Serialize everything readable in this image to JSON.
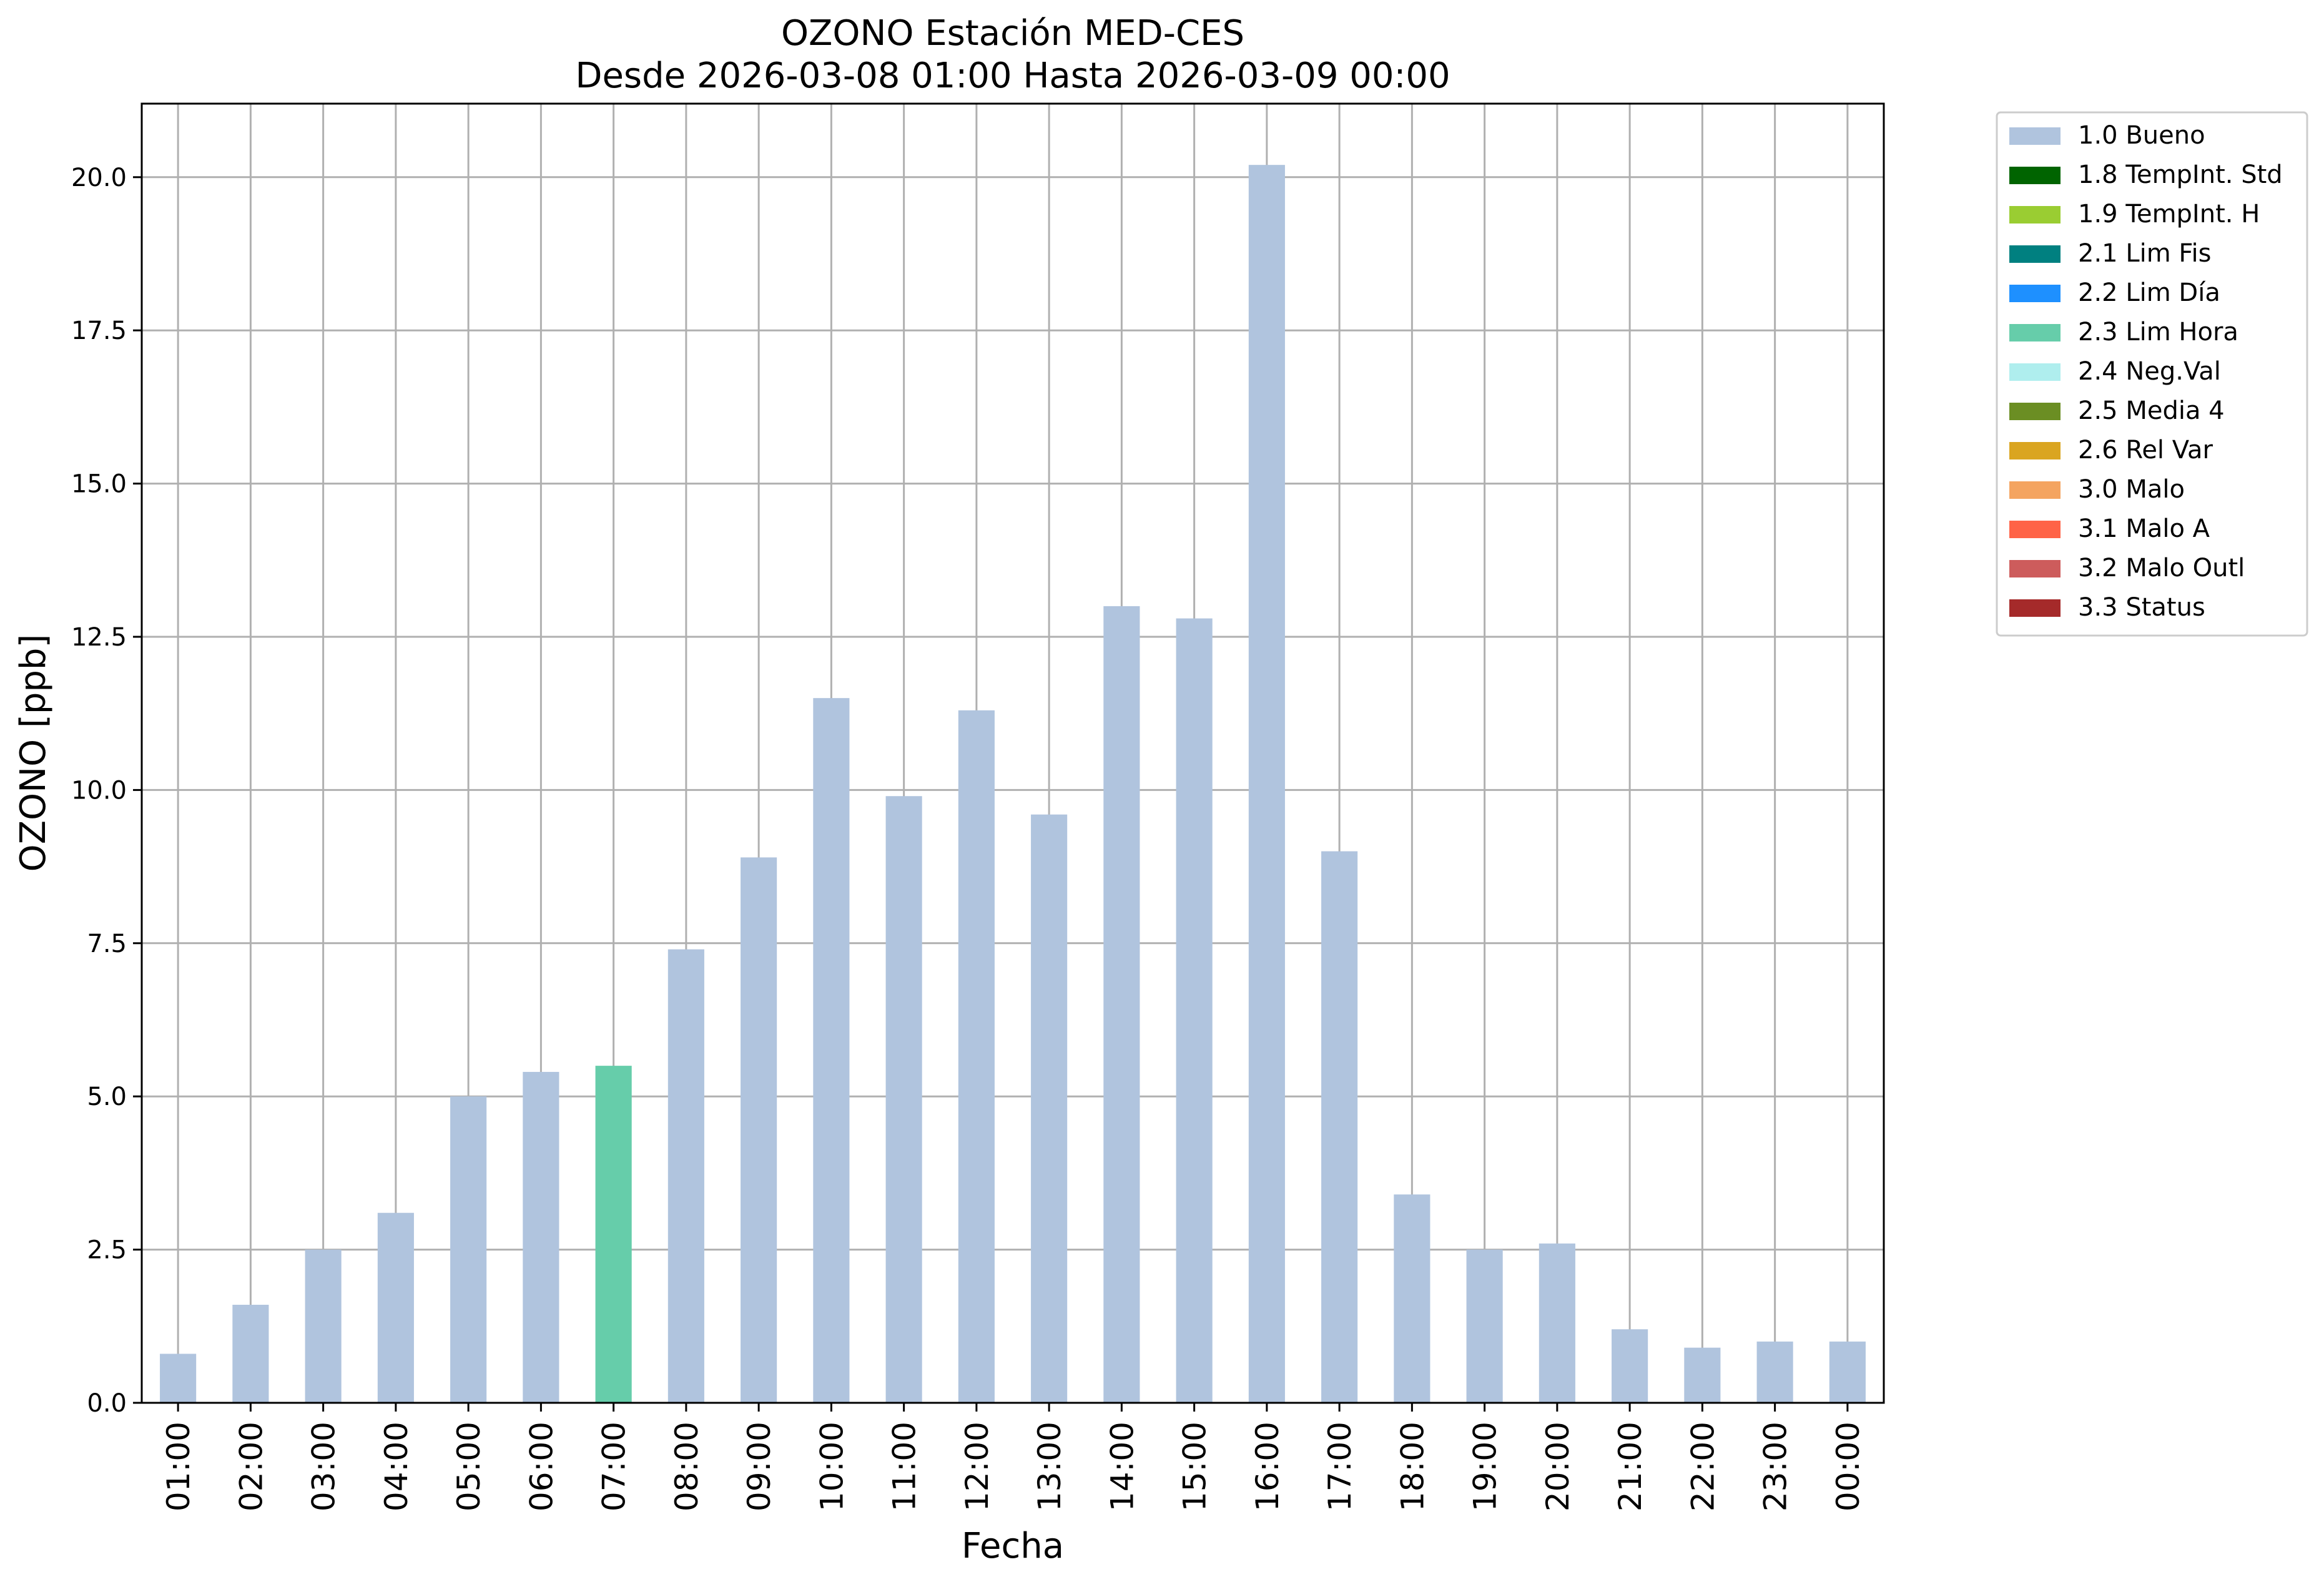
{
  "chart_data": {
    "type": "bar",
    "title": "OZONO Estación MED-CES",
    "subtitle": "Desde 2026-03-08 01:00 Hasta 2026-03-09 00:00",
    "xlabel": "Fecha",
    "ylabel": "OZONO [ppb]",
    "ylim": [
      0,
      21.2
    ],
    "yticks": [
      0.0,
      2.5,
      5.0,
      7.5,
      10.0,
      12.5,
      15.0,
      17.5,
      20.0
    ],
    "ytick_labels": [
      "0.0",
      "2.5",
      "5.0",
      "7.5",
      "10.0",
      "12.5",
      "15.0",
      "17.5",
      "20.0"
    ],
    "grid": true,
    "legend_position": "outside-top-right",
    "categories": [
      "01:00",
      "02:00",
      "03:00",
      "04:00",
      "05:00",
      "06:00",
      "07:00",
      "08:00",
      "09:00",
      "10:00",
      "11:00",
      "12:00",
      "13:00",
      "14:00",
      "15:00",
      "16:00",
      "17:00",
      "18:00",
      "19:00",
      "20:00",
      "21:00",
      "22:00",
      "23:00",
      "00:00"
    ],
    "values": [
      0.8,
      1.6,
      2.5,
      3.1,
      5.0,
      5.4,
      5.5,
      7.4,
      8.9,
      11.5,
      9.9,
      11.3,
      9.6,
      13.0,
      12.8,
      20.2,
      9.0,
      3.4,
      2.5,
      2.6,
      1.2,
      0.9,
      1.0,
      1.0
    ],
    "bar_flags": [
      "1.0 Bueno",
      "1.0 Bueno",
      "1.0 Bueno",
      "1.0 Bueno",
      "1.0 Bueno",
      "1.0 Bueno",
      "2.3 Lim Hora",
      "1.0 Bueno",
      "1.0 Bueno",
      "1.0 Bueno",
      "1.0 Bueno",
      "1.0 Bueno",
      "1.0 Bueno",
      "1.0 Bueno",
      "1.0 Bueno",
      "1.0 Bueno",
      "1.0 Bueno",
      "1.0 Bueno",
      "1.0 Bueno",
      "1.0 Bueno",
      "1.0 Bueno",
      "1.0 Bueno",
      "1.0 Bueno",
      "1.0 Bueno"
    ],
    "legend": [
      {
        "label": "1.0 Bueno",
        "color": "#b0c4de"
      },
      {
        "label": "1.8 TempInt. Std",
        "color": "#006400"
      },
      {
        "label": "1.9 TempInt. H",
        "color": "#9acd32"
      },
      {
        "label": "2.1 Lim Fis",
        "color": "#008080"
      },
      {
        "label": "2.2 Lim Día",
        "color": "#1e90ff"
      },
      {
        "label": "2.3 Lim Hora",
        "color": "#66cdaa"
      },
      {
        "label": "2.4 Neg.Val",
        "color": "#afeeee"
      },
      {
        "label": "2.5 Media 4",
        "color": "#6b8e23"
      },
      {
        "label": "2.6 Rel Var",
        "color": "#daa520"
      },
      {
        "label": "3.0 Malo",
        "color": "#f4a460"
      },
      {
        "label": "3.1 Malo A",
        "color": "#ff6347"
      },
      {
        "label": "3.2 Malo Outl",
        "color": "#cd5c5c"
      },
      {
        "label": "3.3 Status",
        "color": "#a52a2a"
      }
    ]
  }
}
